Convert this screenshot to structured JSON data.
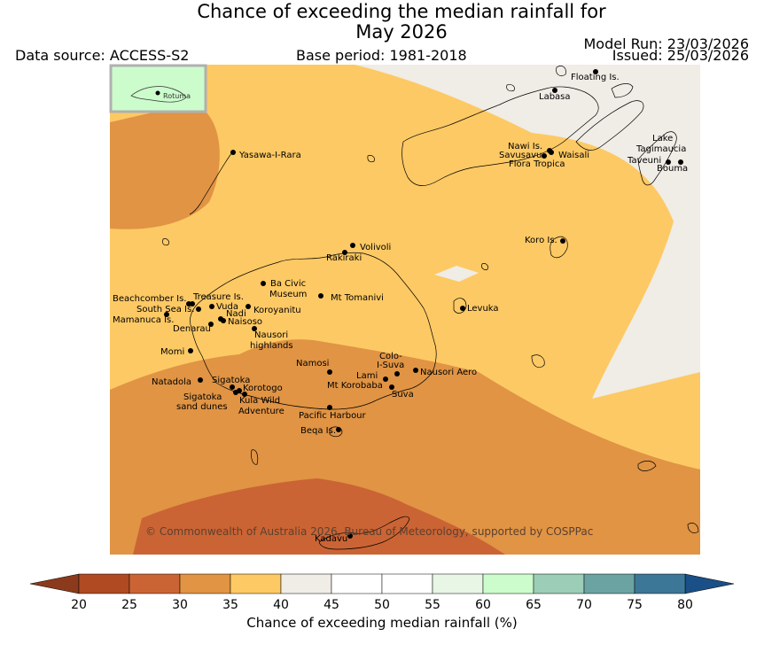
{
  "title": {
    "line1": "Chance of exceeding the median rainfall for",
    "line2": "May 2026"
  },
  "header": {
    "data_source": "Data source: ACCESS-S2",
    "base_period": "Base period: 1981-2018",
    "model_run": "Model Run: 23/03/2026",
    "issued": "Issued: 25/03/2026"
  },
  "inset": {
    "label": "Rotuma"
  },
  "places": [
    {
      "name": "Floating Is."
    },
    {
      "name": "Labasa"
    },
    {
      "name": "Nawi Is."
    },
    {
      "name": "Savusavu"
    },
    {
      "name": "Waisali"
    },
    {
      "name": "Flora Tropica"
    },
    {
      "name": "Lake"
    },
    {
      "name": "Tagimaucia"
    },
    {
      "name": "Taveuni"
    },
    {
      "name": "Bouma"
    },
    {
      "name": "Yasawa-I-Rara"
    },
    {
      "name": "Koro Is."
    },
    {
      "name": "Volivoli"
    },
    {
      "name": "Rakiraki"
    },
    {
      "name": "Ba Civic"
    },
    {
      "name": "Museum"
    },
    {
      "name": "Mt Tomanivi"
    },
    {
      "name": "Beachcomber Is."
    },
    {
      "name": "Treasure Is."
    },
    {
      "name": "Vuda"
    },
    {
      "name": "South Sea Is."
    },
    {
      "name": "Koroyanitu"
    },
    {
      "name": "Nadi"
    },
    {
      "name": "Naisoso"
    },
    {
      "name": "Mamanuca Is."
    },
    {
      "name": "Denarau"
    },
    {
      "name": "Nausori"
    },
    {
      "name": "highlands"
    },
    {
      "name": "Levuka"
    },
    {
      "name": "Momi"
    },
    {
      "name": "Colo-"
    },
    {
      "name": "I-Suva"
    },
    {
      "name": "Namosi"
    },
    {
      "name": "Nausori Aero"
    },
    {
      "name": "Lami"
    },
    {
      "name": "Natadola"
    },
    {
      "name": "Sigatoka"
    },
    {
      "name": "Mt Korobaba"
    },
    {
      "name": "Korotogo"
    },
    {
      "name": "Suva"
    },
    {
      "name": "Sigatoka"
    },
    {
      "name": "Kula Wild"
    },
    {
      "name": "sand dunes"
    },
    {
      "name": "Adventure"
    },
    {
      "name": "Pacific Harbour"
    },
    {
      "name": "Beqa Is."
    },
    {
      "name": "Kadavu"
    }
  ],
  "copyright": "© Commonwealth of Australia 2026, Bureau of Meteorology, supported by COSPPac",
  "colorbar": {
    "label": "Chance of exceeding median rainfall (%)",
    "ticks": [
      "20",
      "25",
      "30",
      "35",
      "40",
      "45",
      "50",
      "55",
      "60",
      "65",
      "70",
      "75",
      "80"
    ],
    "colors": {
      "under": "#8c3a1c",
      "c20_25": "#b04a22",
      "c25_30": "#cb6434",
      "c30_35": "#e09444",
      "c35_40": "#fdc964",
      "c40_45": "#f0ece6",
      "c45_50": "#ffffff",
      "c50_55": "#ffffff",
      "c55_60": "#e8f6e6",
      "c60_65": "#ccfccc",
      "c65_70": "#9ccdb6",
      "c70_75": "#6ba3a3",
      "c75_80": "#3d7797",
      "over": "#1a4f87"
    }
  }
}
